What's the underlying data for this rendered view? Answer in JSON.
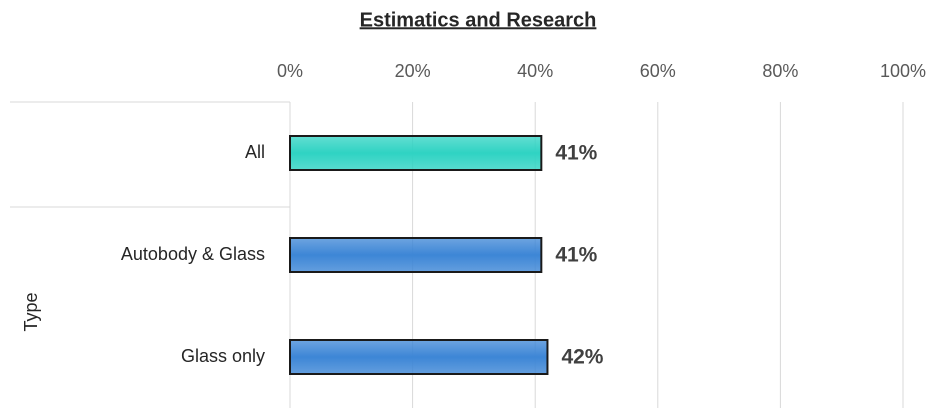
{
  "chart_data": {
    "type": "bar",
    "orientation": "horizontal",
    "title": "Estimatics and Research",
    "y_label": "Type",
    "categories": [
      "All",
      "Autobody & Glass",
      "Glass only"
    ],
    "values": [
      41,
      41,
      42
    ],
    "value_labels": [
      "41%",
      "41%",
      "42%"
    ],
    "colors": [
      "#2fd3c3",
      "#3d86d6",
      "#3d86d6"
    ],
    "xlim": [
      0,
      100
    ],
    "xticks": [
      {
        "value": 0,
        "label": "0%"
      },
      {
        "value": 20,
        "label": "20%"
      },
      {
        "value": 40,
        "label": "40%"
      },
      {
        "value": 60,
        "label": "60%"
      },
      {
        "value": 80,
        "label": "80%"
      },
      {
        "value": 100,
        "label": "100%"
      }
    ],
    "grid": true
  }
}
